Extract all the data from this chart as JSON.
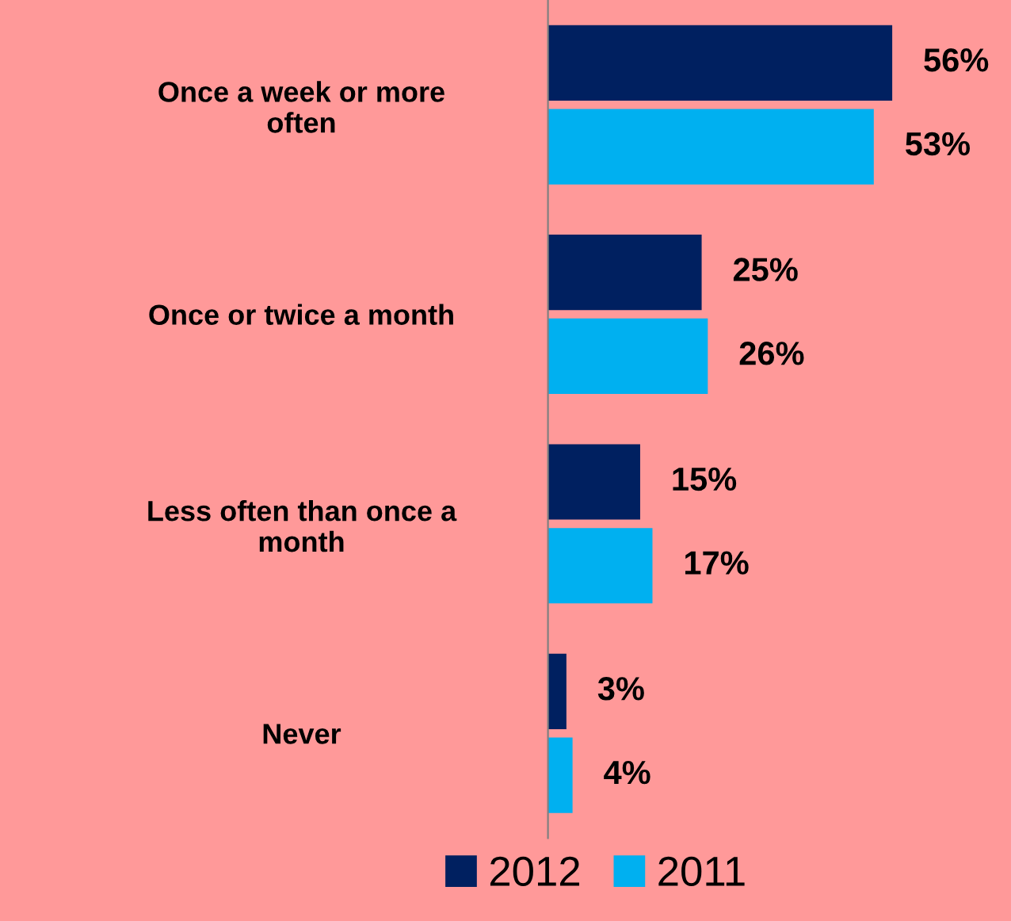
{
  "chart_data": {
    "type": "bar",
    "orientation": "horizontal",
    "categories": [
      "Once a week or more often",
      "Once or twice a month",
      "Less often than once a month",
      "Never"
    ],
    "series": [
      {
        "name": "2012",
        "color": "#002060",
        "values": [
          56,
          25,
          15,
          3
        ],
        "value_labels": [
          "56%",
          "25%",
          "15%",
          "3%"
        ]
      },
      {
        "name": "2011",
        "color": "#00b0f0",
        "values": [
          53,
          26,
          17,
          4
        ],
        "value_labels": [
          "53%",
          "26%",
          "17%",
          "4%"
        ]
      }
    ],
    "legend": "bottom",
    "grid": false
  }
}
